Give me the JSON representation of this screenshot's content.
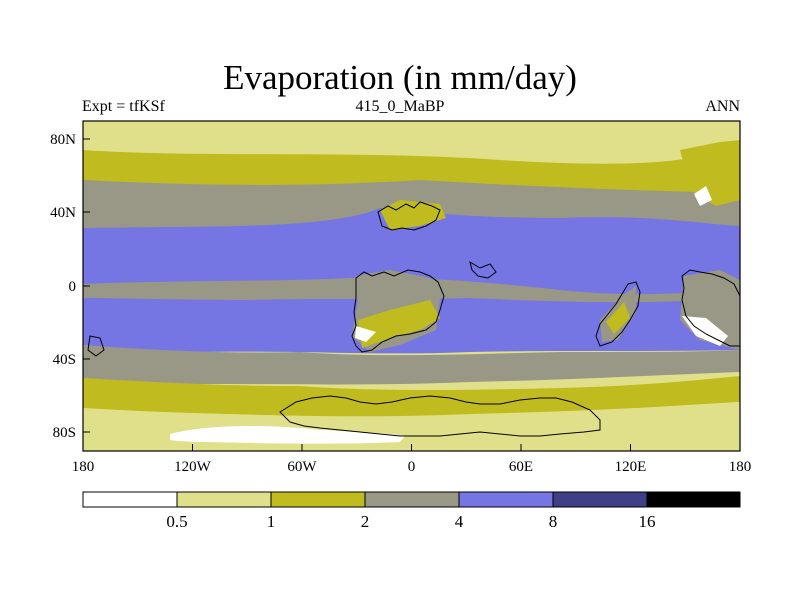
{
  "header": {
    "title": "Evaporation (in mm/day)",
    "left": "Expt = tfKSf",
    "center": "415_0_MaBP",
    "right": "ANN"
  },
  "map": {
    "lon_ticks": [
      "180",
      "120W",
      "60W",
      "0",
      "60E",
      "120E",
      "180"
    ],
    "lat_ticks": [
      "80N",
      "40N",
      "0",
      "40S",
      "80S"
    ]
  },
  "colorbar": {
    "bins": [
      {
        "color": "#ffffff"
      },
      {
        "color": "#e0e08a"
      },
      {
        "color": "#c0bc20"
      },
      {
        "color": "#999887"
      },
      {
        "color": "#7575e3"
      },
      {
        "color": "#3f3f87"
      },
      {
        "color": "#000000"
      }
    ],
    "labels": [
      "0.5",
      "1",
      "2",
      "4",
      "8",
      "16"
    ]
  }
}
